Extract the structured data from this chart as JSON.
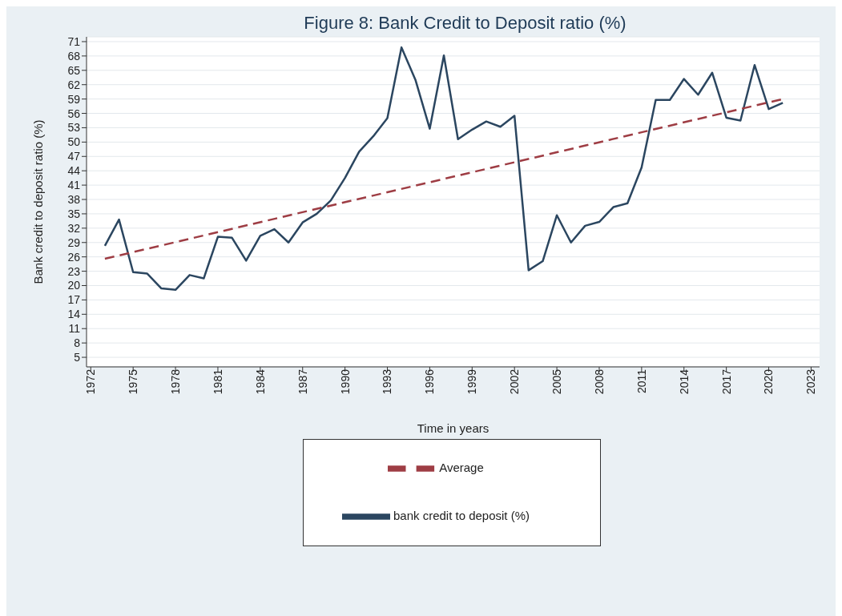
{
  "chart_data": {
    "type": "line",
    "title": "Figure 8: Bank Credit to Deposit ratio (%)",
    "xlabel": "Time in years",
    "ylabel": "Bank credit to deposit ratio (%)",
    "x": [
      1973,
      1974,
      1975,
      1976,
      1977,
      1978,
      1979,
      1980,
      1981,
      1982,
      1983,
      1984,
      1985,
      1986,
      1987,
      1988,
      1989,
      1990,
      1991,
      1992,
      1993,
      1994,
      1995,
      1996,
      1997,
      1998,
      1999,
      2000,
      2001,
      2002,
      2003,
      2004,
      2005,
      2006,
      2007,
      2008,
      2009,
      2010,
      2011,
      2012,
      2013,
      2014,
      2015,
      2016,
      2017,
      2018,
      2019,
      2020,
      2021
    ],
    "series": [
      {
        "name": "bank credit to deposit (%)",
        "color": "#2b4660",
        "line_style": "solid",
        "values": [
          28.3,
          33.8,
          22.8,
          22.5,
          19.4,
          19.1,
          22.2,
          21.5,
          30.2,
          30.0,
          25.2,
          30.4,
          31.8,
          29.0,
          33.2,
          35.0,
          37.8,
          42.5,
          48.0,
          51.2,
          55.0,
          69.8,
          62.9,
          52.8,
          68.1,
          50.6,
          52.6,
          54.3,
          53.2,
          55.5,
          23.2,
          25.1,
          34.7,
          29.0,
          32.5,
          33.3,
          36.4,
          37.2,
          44.7,
          58.8,
          58.8,
          63.2,
          59.9,
          64.5,
          55.1,
          54.5,
          66.1,
          56.9,
          58.2
        ]
      },
      {
        "name": "Average",
        "color": "#9e3d44",
        "line_style": "dashed",
        "x": [
          1973,
          2021
        ],
        "values": [
          25.6,
          59.0
        ]
      }
    ],
    "xlim": [
      1971.7,
      2023.6
    ],
    "xticks": [
      1972,
      1975,
      1978,
      1981,
      1984,
      1987,
      1990,
      1993,
      1996,
      1999,
      2002,
      2005,
      2008,
      2011,
      2014,
      2017,
      2020,
      2023
    ],
    "ylim": [
      3,
      72
    ],
    "yticks": [
      5,
      8,
      11,
      14,
      17,
      20,
      23,
      26,
      29,
      32,
      35,
      38,
      41,
      44,
      47,
      50,
      53,
      56,
      59,
      62,
      65,
      68,
      71
    ],
    "grid": "y",
    "legend": "bottom",
    "marker": "none"
  }
}
